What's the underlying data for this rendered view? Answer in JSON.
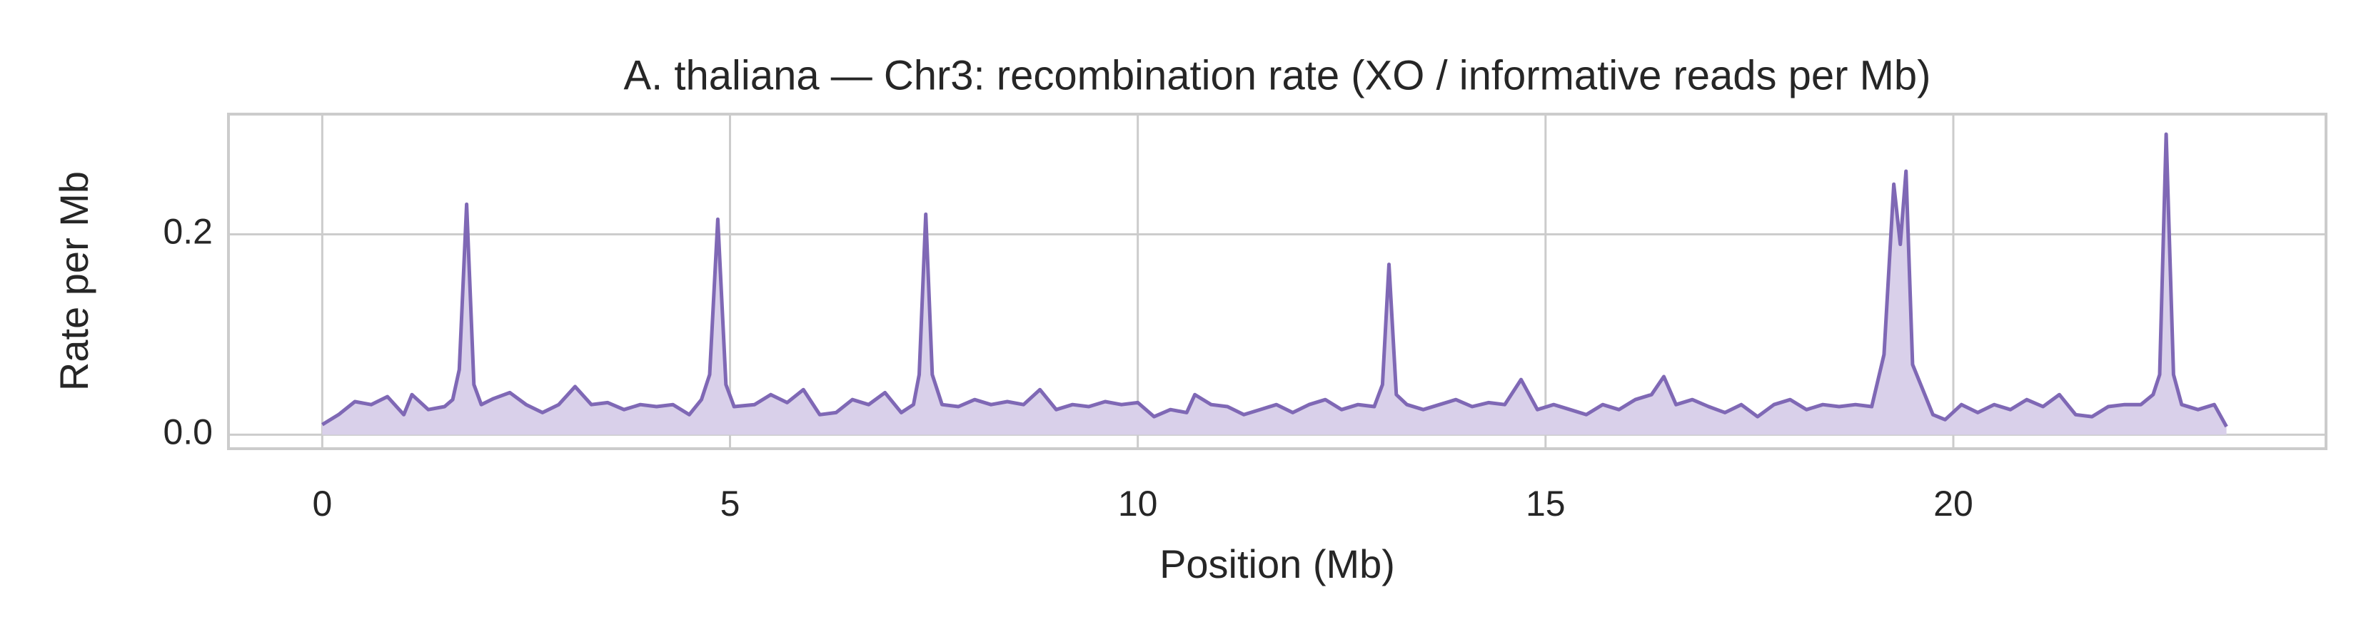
{
  "chart_data": {
    "type": "area",
    "title": "A. thaliana — Chr3: recombination rate (XO / informative reads per Mb)",
    "xlabel": "Position (Mb)",
    "ylabel": "Rate per Mb",
    "color": "#7f68b5",
    "fill_color": "#d9d0ea",
    "grid": true,
    "xlim": [
      -1.15,
      24.57
    ],
    "ylim": [
      -0.014,
      0.32
    ],
    "xticks": [
      0,
      5,
      10,
      15,
      20
    ],
    "yticks": [
      {
        "value": 0,
        "label": "0.0"
      },
      0.2
    ],
    "x": [
      0,
      0.2,
      0.4,
      0.6,
      0.8,
      1.0,
      1.1,
      1.3,
      1.5,
      1.6,
      1.68,
      1.77,
      1.86,
      1.95,
      2.1,
      2.3,
      2.5,
      2.7,
      2.9,
      3.1,
      3.3,
      3.5,
      3.7,
      3.9,
      4.1,
      4.3,
      4.5,
      4.65,
      4.75,
      4.85,
      4.95,
      5.05,
      5.3,
      5.5,
      5.7,
      5.9,
      6.1,
      6.3,
      6.5,
      6.7,
      6.9,
      7.1,
      7.25,
      7.32,
      7.4,
      7.48,
      7.6,
      7.8,
      8.0,
      8.2,
      8.4,
      8.6,
      8.8,
      9.0,
      9.2,
      9.4,
      9.6,
      9.8,
      10.0,
      10.2,
      10.4,
      10.6,
      10.7,
      10.9,
      11.1,
      11.3,
      11.5,
      11.7,
      11.9,
      12.1,
      12.3,
      12.5,
      12.7,
      12.9,
      13.0,
      13.08,
      13.17,
      13.3,
      13.5,
      13.7,
      13.9,
      14.1,
      14.3,
      14.5,
      14.7,
      14.9,
      15.1,
      15.3,
      15.5,
      15.7,
      15.9,
      16.1,
      16.3,
      16.45,
      16.6,
      16.8,
      17.0,
      17.2,
      17.4,
      17.6,
      17.8,
      18.0,
      18.2,
      18.4,
      18.6,
      18.8,
      19.0,
      19.15,
      19.27,
      19.35,
      19.42,
      19.5,
      19.6,
      19.75,
      19.9,
      20.1,
      20.3,
      20.5,
      20.7,
      20.9,
      21.1,
      21.3,
      21.5,
      21.7,
      21.9,
      22.1,
      22.3,
      22.45,
      22.53,
      22.61,
      22.7,
      22.8,
      23.0,
      23.2,
      23.35
    ],
    "values": [
      0.01,
      0.02,
      0.033,
      0.03,
      0.038,
      0.02,
      0.04,
      0.025,
      0.028,
      0.035,
      0.065,
      0.23,
      0.05,
      0.03,
      0.036,
      0.042,
      0.03,
      0.022,
      0.03,
      0.048,
      0.03,
      0.032,
      0.025,
      0.03,
      0.028,
      0.03,
      0.02,
      0.035,
      0.06,
      0.215,
      0.05,
      0.028,
      0.03,
      0.04,
      0.032,
      0.045,
      0.02,
      0.022,
      0.035,
      0.03,
      0.042,
      0.022,
      0.03,
      0.06,
      0.22,
      0.06,
      0.03,
      0.028,
      0.035,
      0.03,
      0.033,
      0.03,
      0.045,
      0.025,
      0.03,
      0.028,
      0.033,
      0.03,
      0.032,
      0.018,
      0.025,
      0.022,
      0.04,
      0.03,
      0.028,
      0.02,
      0.025,
      0.03,
      0.022,
      0.03,
      0.035,
      0.025,
      0.03,
      0.028,
      0.05,
      0.17,
      0.04,
      0.03,
      0.025,
      0.03,
      0.035,
      0.028,
      0.032,
      0.03,
      0.055,
      0.025,
      0.03,
      0.025,
      0.02,
      0.03,
      0.025,
      0.035,
      0.04,
      0.058,
      0.03,
      0.035,
      0.028,
      0.022,
      0.03,
      0.018,
      0.03,
      0.035,
      0.025,
      0.03,
      0.028,
      0.03,
      0.028,
      0.08,
      0.25,
      0.19,
      0.263,
      0.07,
      0.05,
      0.02,
      0.015,
      0.03,
      0.022,
      0.03,
      0.025,
      0.035,
      0.028,
      0.04,
      0.02,
      0.018,
      0.028,
      0.03,
      0.03,
      0.04,
      0.06,
      0.3,
      0.06,
      0.03,
      0.025,
      0.03,
      0.008
    ]
  }
}
